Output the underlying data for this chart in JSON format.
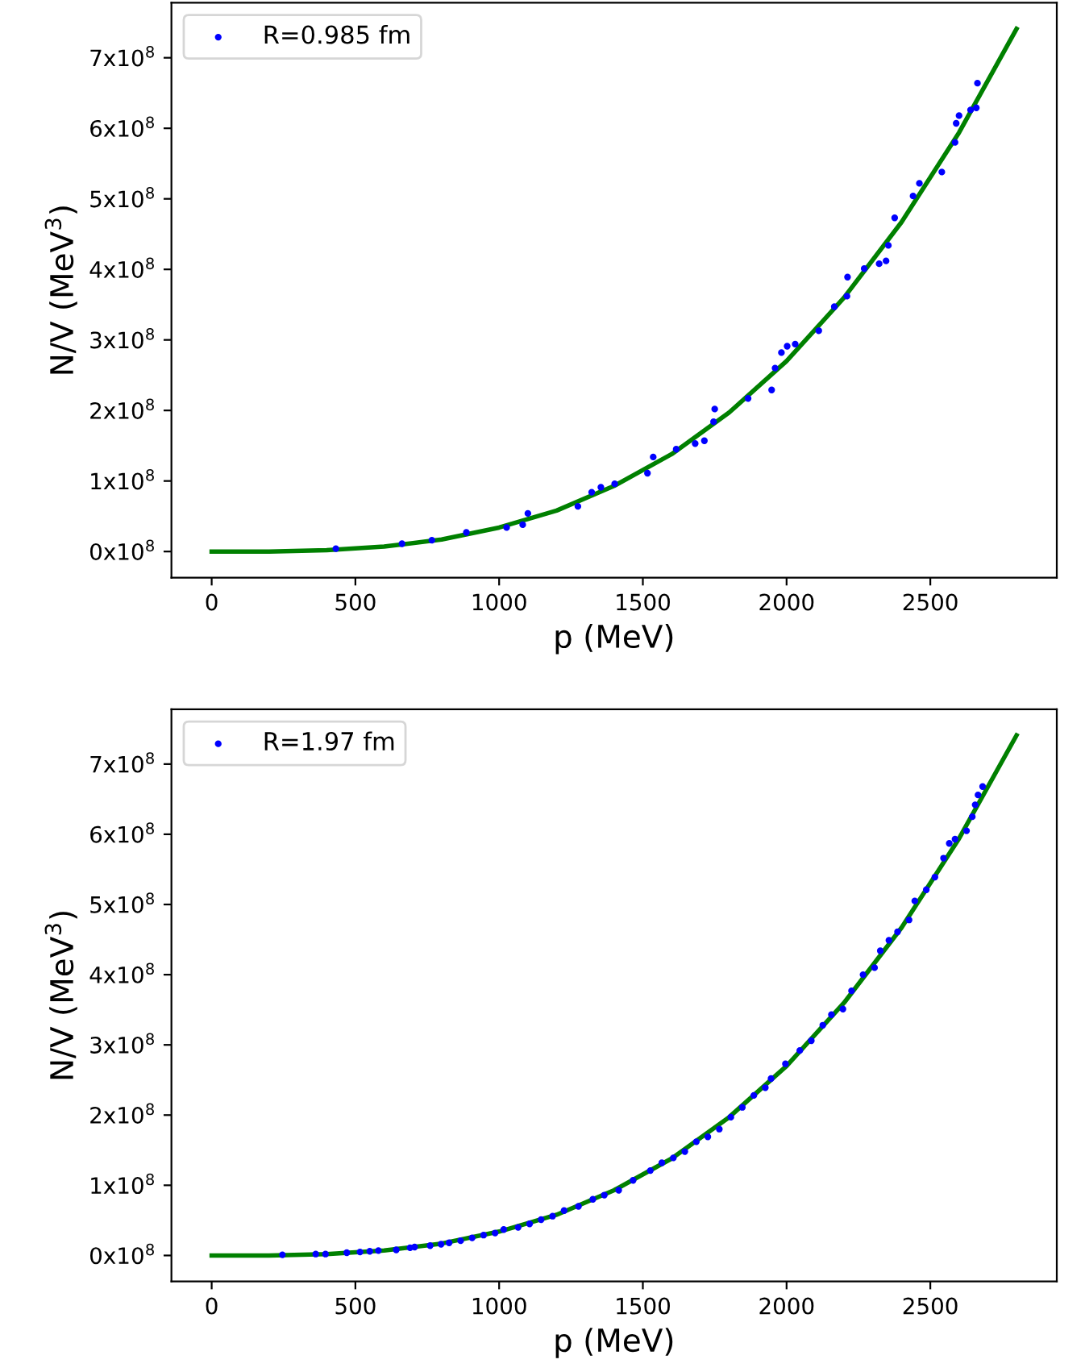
{
  "chart_data": [
    {
      "type": "scatter",
      "xlabel": "p (MeV)",
      "ylabel": "N/V (MeV$^{3}$)",
      "legend": "top left",
      "grid": false,
      "xlim": [
        -140,
        2940
      ],
      "ylim": [
        -37000000,
        778000000
      ],
      "xticks": [
        0,
        500,
        1000,
        1500,
        2000,
        2500
      ],
      "yticks": [
        {
          "value": 0,
          "label": "0x10$^{8}$"
        },
        {
          "value": 100000000,
          "label": "1x10$^{8}$"
        },
        {
          "value": 200000000,
          "label": "2x10$^{8}$"
        },
        {
          "value": 300000000,
          "label": "3x10$^{8}$"
        },
        {
          "value": 400000000,
          "label": "4x10$^{8}$"
        },
        {
          "value": 500000000,
          "label": "5x10$^{8}$"
        },
        {
          "value": 600000000,
          "label": "6x10$^{8}$"
        },
        {
          "value": 700000000,
          "label": "7x10$^{8}$"
        }
      ],
      "series": [
        {
          "name": "R=0.985 fm",
          "color": "#0000ff",
          "marker": "circle",
          "x": [
            432,
            662,
            766,
            886,
            1026,
            1082,
            1100,
            1274,
            1322,
            1354,
            1402,
            1516,
            1536,
            1616,
            1682,
            1714,
            1746,
            1750,
            1866,
            1948,
            1960,
            1982,
            2002,
            2030,
            2112,
            2166,
            2210,
            2212,
            2270,
            2322,
            2346,
            2354,
            2376,
            2440,
            2462,
            2540,
            2586,
            2590,
            2600,
            2640,
            2660,
            2664
          ],
          "values": [
            4000000,
            11000000,
            16000000,
            27000000,
            34000000,
            38000000,
            54000000,
            64000000,
            84000000,
            91000000,
            96000000,
            111000000,
            134000000,
            145000000,
            153000000,
            157000000,
            184000000,
            202000000,
            217000000,
            229000000,
            260000000,
            282000000,
            291000000,
            294000000,
            313000000,
            347000000,
            362000000,
            389000000,
            401000000,
            408000000,
            412000000,
            434000000,
            473000000,
            504000000,
            522000000,
            538000000,
            580000000,
            607000000,
            618000000,
            626000000,
            629000000,
            664000000
          ]
        },
        {
          "type": "line",
          "color": "#008000",
          "line_style": "solid",
          "marker": "none",
          "x": [
            0,
            200,
            400,
            600,
            800,
            1000,
            1200,
            1400,
            1600,
            1800,
            2000,
            2200,
            2400,
            2600,
            2800
          ],
          "values": [
            0,
            0,
            2000000,
            7000000,
            17000000,
            34000000,
            58000000,
            93000000,
            138000000,
            197000000,
            270000000,
            360000000,
            467000000,
            594000000,
            741000000
          ]
        }
      ]
    },
    {
      "type": "scatter",
      "xlabel": "p (MeV)",
      "ylabel": "N/V (MeV$^{3}$)",
      "legend": "top left",
      "grid": false,
      "xlim": [
        -140,
        2940
      ],
      "ylim": [
        -37000000,
        778000000
      ],
      "xticks": [
        0,
        500,
        1000,
        1500,
        2000,
        2500
      ],
      "yticks": [
        {
          "value": 0,
          "label": "0x10$^{8}$"
        },
        {
          "value": 100000000,
          "label": "1x10$^{8}$"
        },
        {
          "value": 200000000,
          "label": "2x10$^{8}$"
        },
        {
          "value": 300000000,
          "label": "3x10$^{8}$"
        },
        {
          "value": 400000000,
          "label": "4x10$^{8}$"
        },
        {
          "value": 500000000,
          "label": "5x10$^{8}$"
        },
        {
          "value": 600000000,
          "label": "6x10$^{8}$"
        },
        {
          "value": 700000000,
          "label": "7x10$^{8}$"
        }
      ],
      "series": [
        {
          "name": "R=1.97 fm",
          "color": "#0000ff",
          "marker": "circle",
          "x": [
            246,
            362,
            396,
            470,
            516,
            550,
            580,
            642,
            690,
            706,
            760,
            798,
            826,
            866,
            906,
            946,
            986,
            1016,
            1066,
            1106,
            1146,
            1186,
            1226,
            1276,
            1326,
            1366,
            1416,
            1466,
            1526,
            1566,
            1606,
            1646,
            1686,
            1726,
            1766,
            1806,
            1846,
            1886,
            1926,
            1946,
            1996,
            2046,
            2086,
            2126,
            2156,
            2196,
            2226,
            2266,
            2306,
            2326,
            2356,
            2386,
            2426,
            2446,
            2486,
            2516,
            2546,
            2566,
            2586,
            2626,
            2646,
            2656,
            2666,
            2682
          ],
          "values": [
            1000000,
            2000000,
            2000000,
            4000000,
            5000000,
            6000000,
            7000000,
            8000000,
            11000000,
            12000000,
            14000000,
            16000000,
            18000000,
            21000000,
            25000000,
            29000000,
            32000000,
            37000000,
            40000000,
            45000000,
            51000000,
            56000000,
            64000000,
            70000000,
            80000000,
            86000000,
            93000000,
            107000000,
            121000000,
            132000000,
            139000000,
            148000000,
            162000000,
            169000000,
            180000000,
            197000000,
            211000000,
            228000000,
            239000000,
            252000000,
            273000000,
            292000000,
            306000000,
            328000000,
            343000000,
            351000000,
            377000000,
            400000000,
            410000000,
            434000000,
            449000000,
            461000000,
            478000000,
            505000000,
            521000000,
            539000000,
            566000000,
            587000000,
            593000000,
            605000000,
            625000000,
            642000000,
            656000000,
            668000000
          ]
        },
        {
          "type": "line",
          "color": "#008000",
          "line_style": "solid",
          "marker": "none",
          "x": [
            0,
            200,
            400,
            600,
            800,
            1000,
            1200,
            1400,
            1600,
            1800,
            2000,
            2200,
            2400,
            2600,
            2800
          ],
          "values": [
            0,
            0,
            2000000,
            7000000,
            17000000,
            34000000,
            58000000,
            93000000,
            138000000,
            197000000,
            270000000,
            360000000,
            467000000,
            594000000,
            741000000
          ]
        }
      ]
    }
  ]
}
